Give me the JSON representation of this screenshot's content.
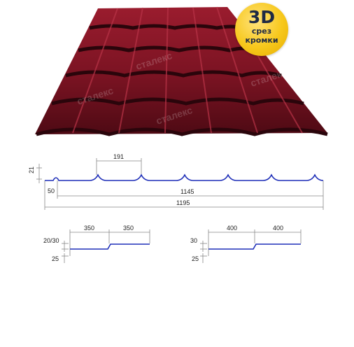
{
  "badge": {
    "line1": "3D",
    "line2": "срез",
    "line3": "кромки"
  },
  "brand": {
    "watermark": "сталекс",
    "color": "#7d1422",
    "badge_color": "#f7c81c"
  },
  "profile": {
    "height": "21",
    "wave_step": "191",
    "edge": "50",
    "useful_width": "1145",
    "total_width": "1195"
  },
  "step_350": {
    "left_dim": "350",
    "right_dim": "350",
    "step_height": "20/30",
    "base_height": "25"
  },
  "step_400": {
    "left_dim": "400",
    "right_dim": "400",
    "step_height": "30",
    "base_height": "25"
  }
}
